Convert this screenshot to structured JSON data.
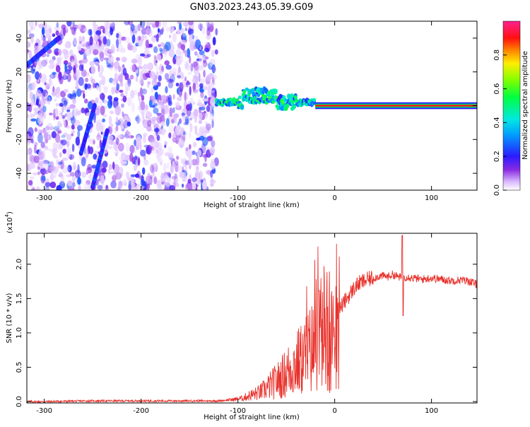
{
  "page": {
    "title": "GN03.2023.243.05.39.G09"
  },
  "chart_data": [
    {
      "type": "heatmap",
      "xlabel": "Height of straight line (km)",
      "ylabel": "Frequency (Hz)",
      "xlim": [
        -318,
        147
      ],
      "ylim": [
        -50,
        50
      ],
      "x_ticks": [
        -300,
        -200,
        -100,
        0,
        100
      ],
      "y_ticks": [
        -40,
        -20,
        0,
        20,
        40
      ],
      "colorbar": {
        "label": "Normalized spectral amplitude",
        "range": [
          0.0,
          1.0
        ],
        "ticks": [
          0.0,
          0.2,
          0.4,
          0.6,
          0.8
        ],
        "colormap": "rainbow (white-purple-blue-cyan-green-yellow-red-magenta)"
      },
      "features": [
        {
          "x_range": [
            -318,
            -122
          ],
          "description": "broadband noise, amplitude ~0.05-0.25"
        },
        {
          "x_range": [
            -122,
            -20
          ],
          "center_freq": 2,
          "description": "ragged band near 0 Hz, amplitude ~0.3-0.6"
        },
        {
          "x_range": [
            -20,
            147
          ],
          "center_freq": 0,
          "description": "narrow line at 0 Hz, amplitude ~1.0"
        }
      ]
    },
    {
      "type": "line",
      "xlabel": "Height of straight line (km)",
      "ylabel": "SNR (10 * v/v)",
      "y_multiplier_label": "(x10",
      "y_multiplier_exp": "4",
      "y_multiplier_close": ")",
      "xlim": [
        -318,
        147
      ],
      "ylim": [
        -0.02,
        2.45
      ],
      "x_ticks": [
        -300,
        -200,
        -100,
        0,
        100
      ],
      "y_ticks": [
        "0.0",
        "0.5",
        "1.0",
        "1.5",
        "2.0"
      ],
      "y_tick_values": [
        0.0,
        0.5,
        1.0,
        1.5,
        2.0
      ],
      "series": [
        {
          "color": "#e8312b",
          "x": [
            -318,
            -300,
            -250,
            -200,
            -150,
            -120,
            -105,
            -95,
            -90,
            -85,
            -80,
            -75,
            -70,
            -65,
            -60,
            -55,
            -50,
            -45,
            -40,
            -35,
            -30,
            -25,
            -20,
            -15,
            -10,
            -5,
            0,
            5,
            10,
            15,
            20,
            25,
            30,
            35,
            40,
            45,
            50,
            55,
            60,
            65,
            70,
            75,
            80,
            90,
            100,
            110,
            120,
            130,
            140,
            147
          ],
          "y": [
            0.0,
            0.0,
            0.01,
            0.01,
            0.01,
            0.01,
            0.03,
            0.05,
            0.08,
            0.1,
            0.12,
            0.15,
            0.2,
            0.25,
            0.3,
            0.35,
            0.42,
            0.5,
            0.55,
            0.6,
            0.68,
            0.75,
            0.85,
            0.95,
            1.05,
            1.15,
            1.25,
            1.35,
            1.45,
            1.55,
            1.65,
            1.72,
            1.75,
            1.78,
            1.8,
            1.82,
            1.83,
            1.82,
            1.85,
            1.82,
            1.8,
            1.82,
            1.8,
            1.78,
            1.8,
            1.78,
            1.76,
            1.77,
            1.75,
            1.7
          ]
        }
      ]
    }
  ]
}
